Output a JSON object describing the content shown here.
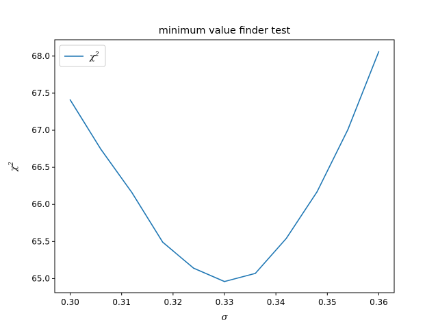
{
  "chart_data": {
    "type": "line",
    "title": "minimum value finder test",
    "xlabel": "σ",
    "ylabel": "χ",
    "ylabel_superscript": "2",
    "xlim": [
      0.297,
      0.363
    ],
    "ylim": [
      64.81,
      68.22
    ],
    "grid": false,
    "legend_position": "top-left",
    "x_ticks": [
      0.3,
      0.31,
      0.32,
      0.33,
      0.34,
      0.35,
      0.36
    ],
    "x_tick_labels": [
      "0.30",
      "0.31",
      "0.32",
      "0.33",
      "0.34",
      "0.35",
      "0.36"
    ],
    "y_ticks": [
      65.0,
      65.5,
      66.0,
      66.5,
      67.0,
      67.5,
      68.0
    ],
    "y_tick_labels": [
      "65.0",
      "65.5",
      "66.0",
      "66.5",
      "67.0",
      "67.5",
      "68.0"
    ],
    "series": [
      {
        "name": "χ",
        "name_superscript": "2",
        "color": "#1f77b4",
        "x": [
          0.3,
          0.306,
          0.312,
          0.318,
          0.324,
          0.33,
          0.336,
          0.342,
          0.348,
          0.354,
          0.36
        ],
        "y": [
          67.41,
          66.74,
          66.16,
          65.49,
          65.14,
          64.96,
          65.07,
          65.54,
          66.17,
          67.01,
          68.06
        ]
      }
    ]
  }
}
